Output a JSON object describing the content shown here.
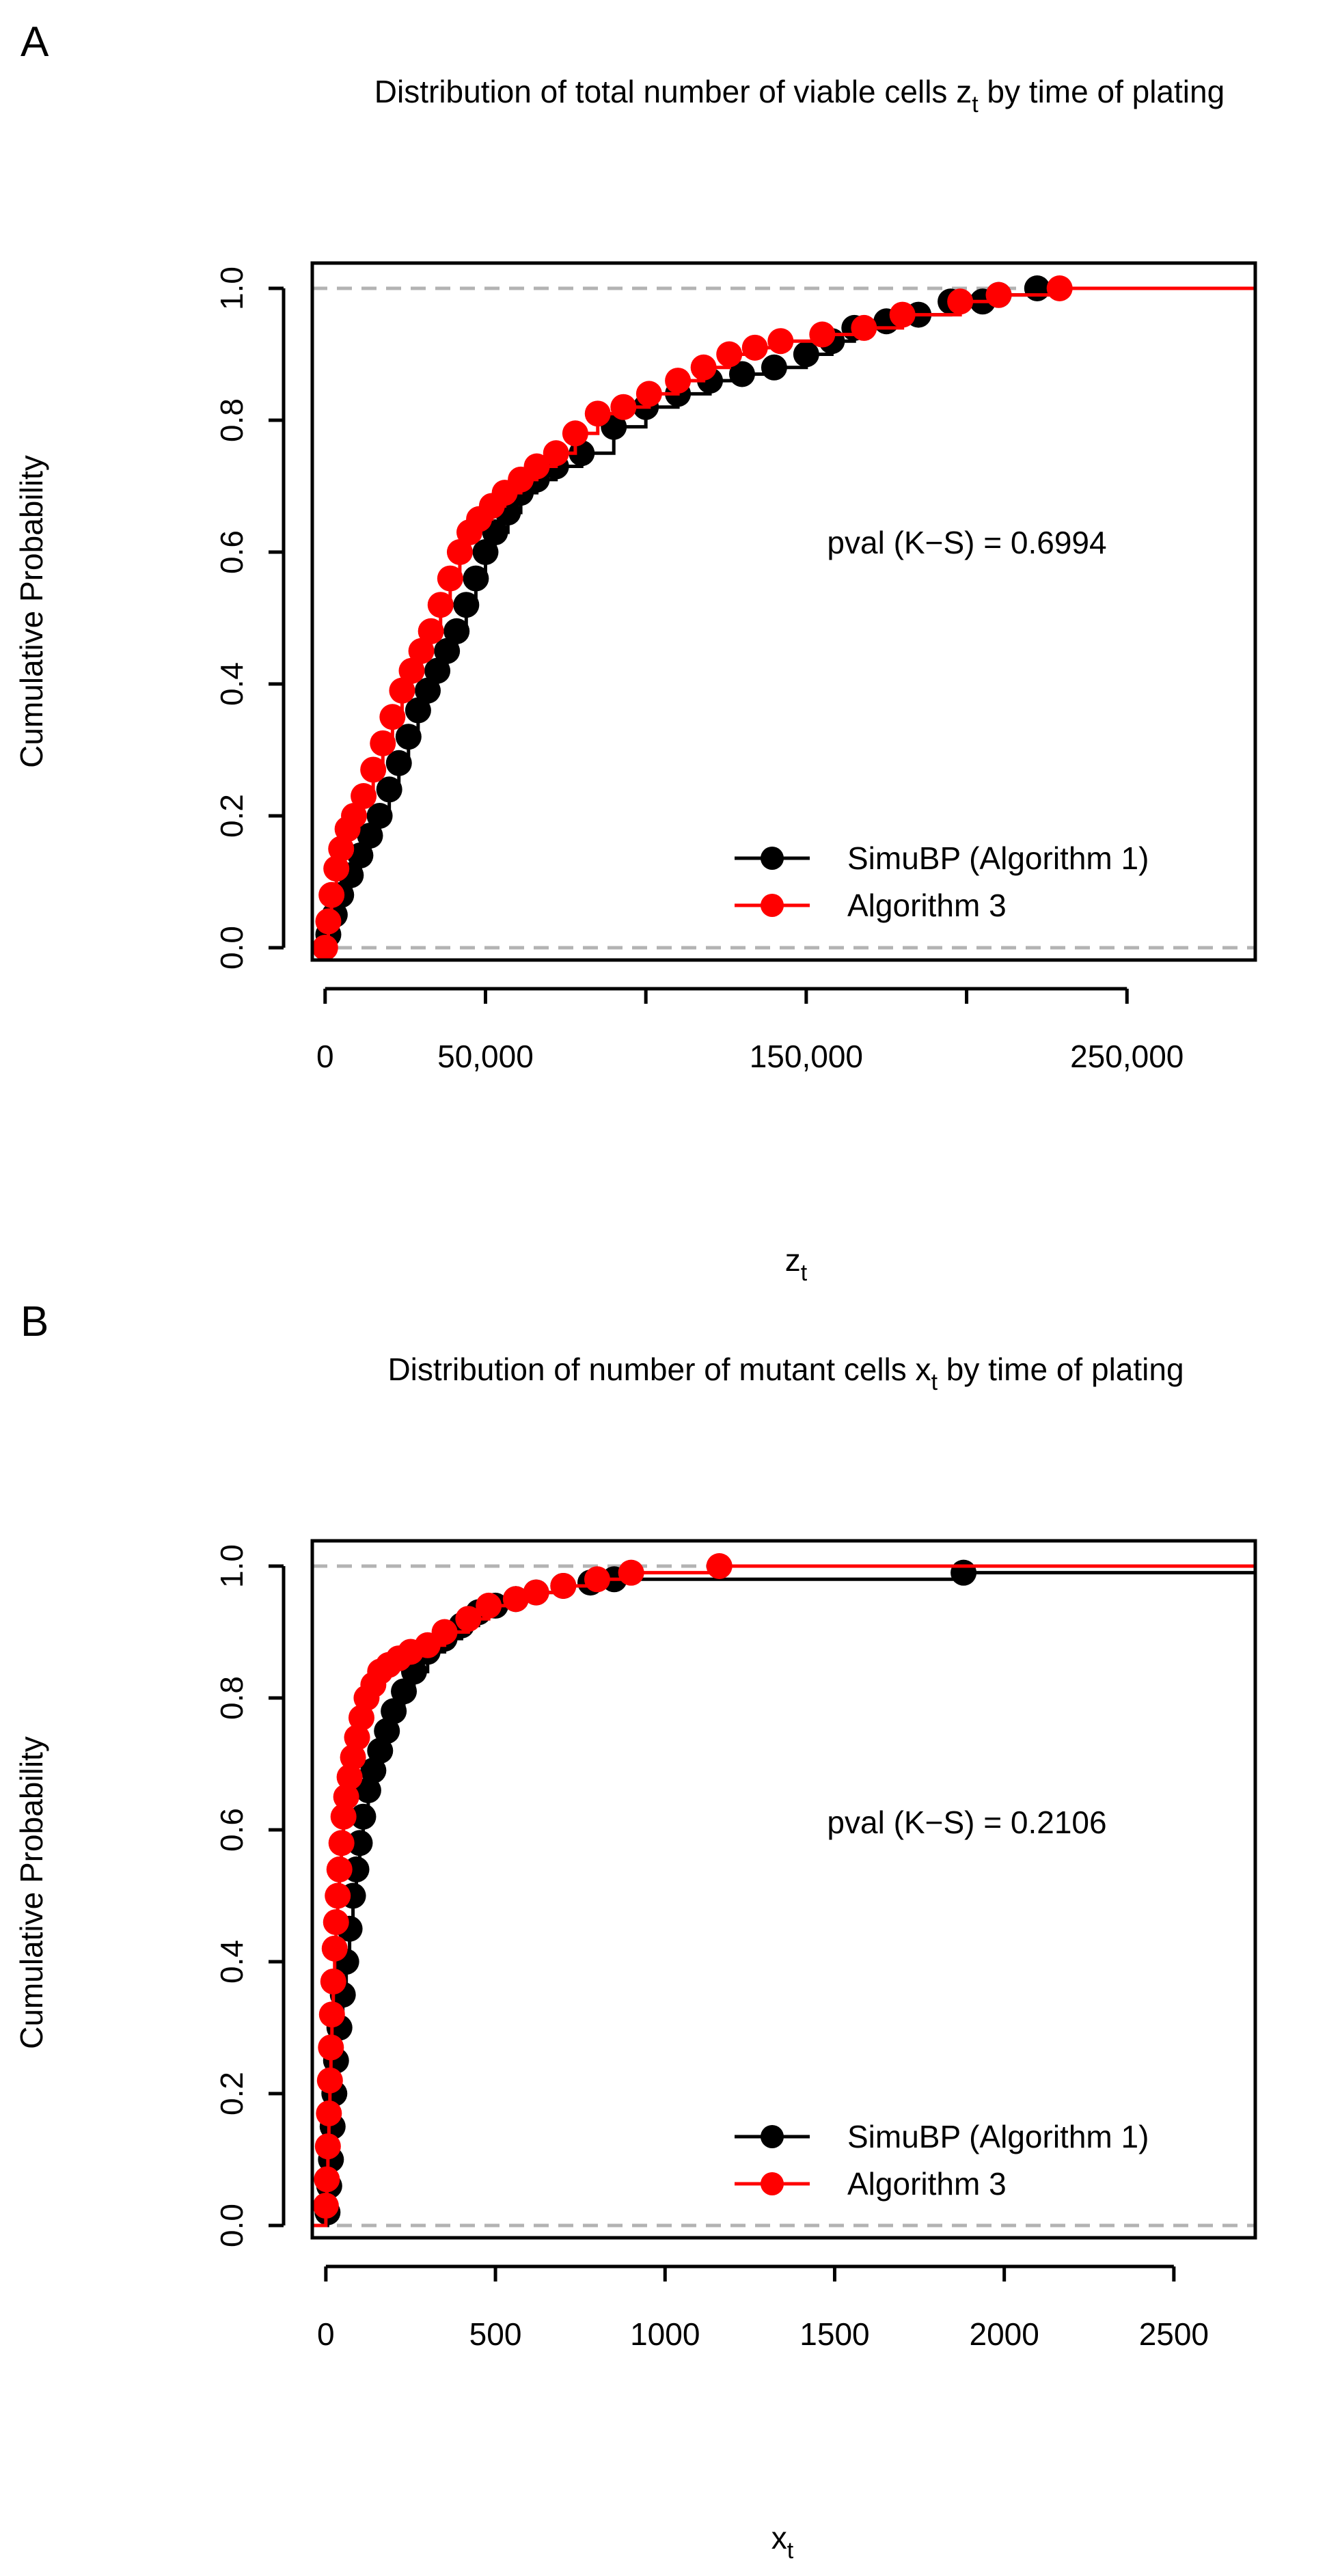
{
  "chart_data": [
    {
      "panel_letter": "A",
      "type": "line",
      "subtype": "empirical-cdf",
      "title_main": "Distribution of total number of viable cells z",
      "title_sub": "t",
      "title_end": " by time of plating",
      "xlabel_main": "z",
      "xlabel_sub": "t",
      "ylabel": "Cumulative Probability",
      "xlim": [
        -4000,
        290000
      ],
      "ylim": [
        0,
        1
      ],
      "x_ticks": [
        0,
        50000,
        100000,
        150000,
        200000,
        250000
      ],
      "x_tick_labels": [
        {
          "value": 0,
          "label": "0"
        },
        {
          "value": 50000,
          "label": "50,000"
        },
        {
          "value": 150000,
          "label": "150,000"
        },
        {
          "value": 250000,
          "label": "250,000"
        }
      ],
      "y_ticks": [
        0.0,
        0.2,
        0.4,
        0.6,
        0.8,
        1.0
      ],
      "y_tick_labels": [
        "0.0",
        "0.2",
        "0.4",
        "0.6",
        "0.8",
        "1.0"
      ],
      "reference_lines_y": [
        0,
        1
      ],
      "annotation": "pval (K−S) = 0.6994",
      "legend_position": "bottom-right",
      "series": [
        {
          "name": "SimuBP (Algorithm 1)",
          "color": "#000000",
          "x": [
            1000,
            3000,
            5000,
            8000,
            11000,
            14000,
            17000,
            20000,
            23000,
            26000,
            29000,
            32000,
            35000,
            38000,
            41000,
            44000,
            47000,
            50000,
            53000,
            57000,
            61000,
            66000,
            72000,
            80000,
            90000,
            100000,
            110000,
            120000,
            130000,
            140000,
            150000,
            158000,
            165000,
            175000,
            185000,
            195000,
            205000,
            210000,
            222000
          ],
          "y": [
            0.02,
            0.05,
            0.08,
            0.11,
            0.14,
            0.17,
            0.2,
            0.24,
            0.28,
            0.32,
            0.36,
            0.39,
            0.42,
            0.45,
            0.48,
            0.52,
            0.56,
            0.6,
            0.63,
            0.66,
            0.69,
            0.71,
            0.73,
            0.75,
            0.79,
            0.82,
            0.84,
            0.86,
            0.87,
            0.88,
            0.9,
            0.92,
            0.94,
            0.95,
            0.96,
            0.98,
            0.98,
            0.99,
            1.0
          ]
        },
        {
          "name": "Algorithm 3",
          "color": "#ff0000",
          "x": [
            0,
            1000,
            2000,
            3500,
            5000,
            7000,
            9000,
            12000,
            15000,
            18000,
            21000,
            24000,
            27000,
            30000,
            33000,
            36000,
            39000,
            42000,
            45000,
            48000,
            52000,
            56000,
            61000,
            66000,
            72000,
            78000,
            85000,
            93000,
            101000,
            110000,
            118000,
            126000,
            134000,
            142000,
            155000,
            168000,
            180000,
            198000,
            210000,
            229000
          ],
          "y": [
            0.0,
            0.04,
            0.08,
            0.12,
            0.15,
            0.18,
            0.2,
            0.23,
            0.27,
            0.31,
            0.35,
            0.39,
            0.42,
            0.45,
            0.48,
            0.52,
            0.56,
            0.6,
            0.63,
            0.65,
            0.67,
            0.69,
            0.71,
            0.73,
            0.75,
            0.78,
            0.81,
            0.82,
            0.84,
            0.86,
            0.88,
            0.9,
            0.91,
            0.92,
            0.93,
            0.94,
            0.96,
            0.98,
            0.99,
            1.0
          ]
        }
      ]
    },
    {
      "panel_letter": "B",
      "type": "line",
      "subtype": "empirical-cdf",
      "title_main": "Distribution of number of mutant cells x",
      "title_sub": "t",
      "title_end": " by time of plating",
      "xlabel_main": "x",
      "xlabel_sub": "t",
      "ylabel": "Cumulative Probability",
      "xlim": [
        -40,
        2740
      ],
      "ylim": [
        0,
        1
      ],
      "x_ticks": [
        0,
        500,
        1000,
        1500,
        2000,
        2500
      ],
      "x_tick_labels": [
        {
          "value": 0,
          "label": "0"
        },
        {
          "value": 500,
          "label": "500"
        },
        {
          "value": 1000,
          "label": "1000"
        },
        {
          "value": 1500,
          "label": "1500"
        },
        {
          "value": 2000,
          "label": "2000"
        },
        {
          "value": 2500,
          "label": "2500"
        }
      ],
      "y_ticks": [
        0.0,
        0.2,
        0.4,
        0.6,
        0.8,
        1.0
      ],
      "y_tick_labels": [
        "0.0",
        "0.2",
        "0.4",
        "0.6",
        "0.8",
        "1.0"
      ],
      "reference_lines_y": [
        0,
        1
      ],
      "annotation": "pval (K−S) = 0.2106",
      "legend_position": "bottom-right",
      "series": [
        {
          "name": "SimuBP (Algorithm 1)",
          "color": "#000000",
          "x": [
            5,
            10,
            15,
            20,
            25,
            30,
            40,
            50,
            60,
            70,
            80,
            90,
            100,
            110,
            125,
            140,
            160,
            180,
            200,
            230,
            260,
            300,
            350,
            400,
            450,
            500,
            560,
            620,
            700,
            780,
            850,
            1880
          ],
          "y": [
            0.02,
            0.06,
            0.1,
            0.15,
            0.2,
            0.25,
            0.3,
            0.35,
            0.4,
            0.45,
            0.5,
            0.54,
            0.58,
            0.62,
            0.66,
            0.69,
            0.72,
            0.75,
            0.78,
            0.81,
            0.84,
            0.87,
            0.89,
            0.91,
            0.93,
            0.94,
            0.95,
            0.96,
            0.97,
            0.975,
            0.98,
            0.99
          ]
        },
        {
          "name": "Algorithm 3",
          "color": "#ff0000",
          "x": [
            0,
            3,
            6,
            9,
            12,
            15,
            18,
            22,
            26,
            30,
            35,
            40,
            46,
            52,
            60,
            70,
            80,
            92,
            105,
            120,
            140,
            160,
            185,
            215,
            250,
            300,
            350,
            420,
            480,
            560,
            620,
            700,
            800,
            900,
            1160
          ],
          "y": [
            0.03,
            0.07,
            0.12,
            0.17,
            0.22,
            0.27,
            0.32,
            0.37,
            0.42,
            0.46,
            0.5,
            0.54,
            0.58,
            0.62,
            0.65,
            0.68,
            0.71,
            0.74,
            0.77,
            0.8,
            0.82,
            0.84,
            0.85,
            0.86,
            0.87,
            0.88,
            0.9,
            0.92,
            0.94,
            0.95,
            0.96,
            0.97,
            0.98,
            0.99,
            1.0
          ]
        }
      ]
    }
  ]
}
